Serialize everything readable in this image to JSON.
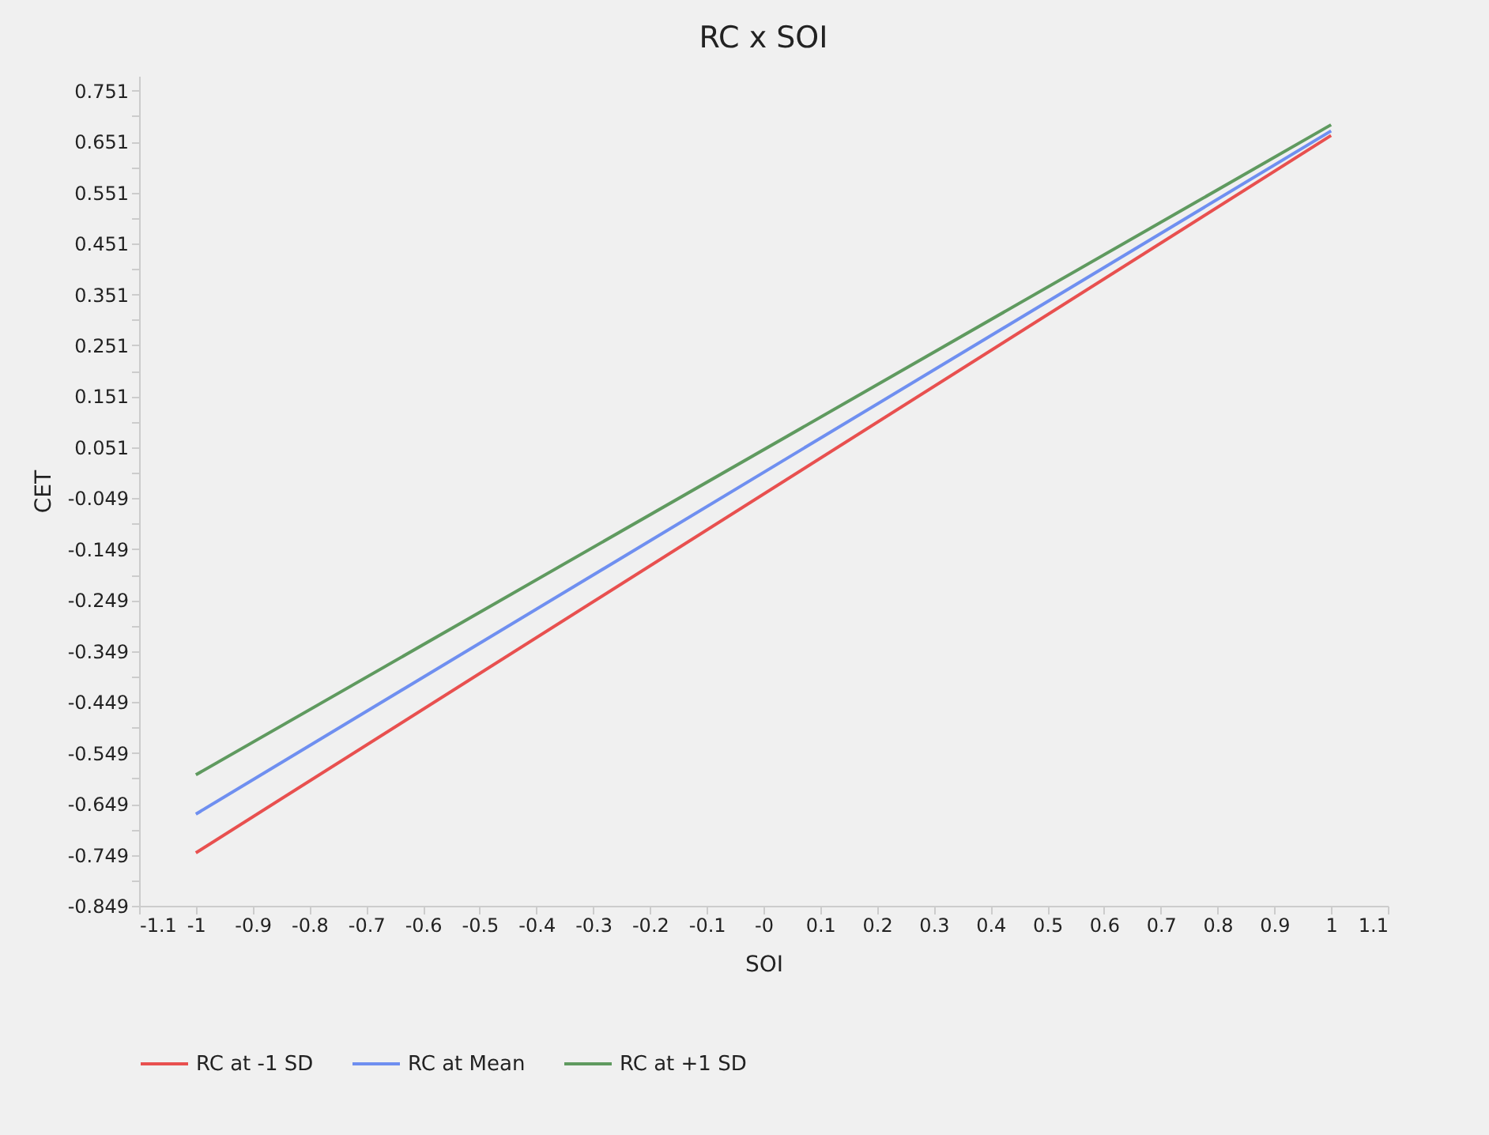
{
  "chart_data": {
    "type": "line",
    "title": "RC x SOI",
    "xlabel": "SOI",
    "ylabel": "CET",
    "x": [
      -1,
      1
    ],
    "series": [
      {
        "name": "RC at -1 SD",
        "color": "#e8504f",
        "values": [
          -0.745,
          0.663
        ]
      },
      {
        "name": "RC at Mean",
        "color": "#6f8ff0",
        "values": [
          -0.669,
          0.672
        ]
      },
      {
        "name": "RC at +1 SD",
        "color": "#5f9a5f",
        "values": [
          -0.592,
          0.684
        ]
      }
    ],
    "xlim": [
      -1.1,
      1.1
    ],
    "xticks": [
      -1.1,
      -1,
      -0.9,
      -0.8,
      -0.7,
      -0.6,
      -0.5,
      -0.4,
      -0.3,
      -0.2,
      -0.1,
      {
        "value": 0,
        "label": "-0"
      },
      0.1,
      0.2,
      0.3,
      0.4,
      0.5,
      0.6,
      0.7,
      0.8,
      0.9,
      1,
      1.1
    ],
    "ylim": [
      -0.849,
      0.78
    ],
    "yticks": [
      -0.849,
      {
        "value": -0.799,
        "label": null
      },
      -0.749,
      {
        "value": -0.699,
        "label": null
      },
      -0.649,
      {
        "value": -0.599,
        "label": null
      },
      -0.549,
      {
        "value": -0.499,
        "label": null
      },
      -0.449,
      {
        "value": -0.399,
        "label": null
      },
      -0.349,
      {
        "value": -0.299,
        "label": null
      },
      -0.249,
      {
        "value": -0.199,
        "label": null
      },
      -0.149,
      {
        "value": -0.099,
        "label": null
      },
      -0.049,
      {
        "value": 0.001,
        "label": null
      },
      0.051,
      {
        "value": 0.101,
        "label": null
      },
      0.151,
      {
        "value": 0.201,
        "label": null
      },
      0.251,
      {
        "value": 0.301,
        "label": null
      },
      0.351,
      {
        "value": 0.401,
        "label": null
      },
      0.451,
      {
        "value": 0.501,
        "label": null
      },
      0.551,
      {
        "value": 0.601,
        "label": null
      },
      0.651,
      {
        "value": 0.701,
        "label": null
      },
      0.751
    ],
    "grid": false,
    "legend": "bottom",
    "marker": "none",
    "line_style": "solid"
  }
}
